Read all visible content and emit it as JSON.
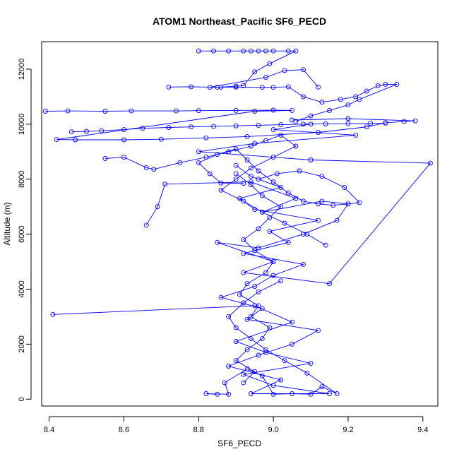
{
  "chart_data": {
    "type": "scatter",
    "title": "ATOM1 Northeast_Pacific SF6_PECD",
    "xlabel": "SF6_PECD",
    "ylabel": "Altitude (m)",
    "xlim": [
      8.38,
      9.44
    ],
    "ylim": [
      -250,
      13000
    ],
    "x_ticks": [
      8.4,
      8.6,
      8.8,
      9.0,
      9.2,
      9.4
    ],
    "x_tick_labels": [
      "8.4",
      "8.6",
      "8.8",
      "9.0",
      "9.2",
      "9.4"
    ],
    "y_ticks": [
      0,
      2000,
      4000,
      6000,
      8000,
      10000,
      12000
    ],
    "y_tick_labels": [
      "0",
      "2000",
      "4000",
      "6000",
      "8000",
      "10000",
      "12000"
    ],
    "grid": false,
    "color": "#0000ff",
    "marker": "open-circle",
    "series": [
      {
        "x": [
          8.41,
          8.95,
          9.05,
          8.9,
          8.98,
          9.1,
          8.92,
          9.0,
          9.15,
          8.94,
          9.02,
          8.88,
          8.96,
          9.05,
          9.12,
          8.93,
          8.97,
          8.86,
          8.95,
          9.0,
          9.08,
          8.92,
          9.04,
          8.99,
          9.12,
          8.95,
          8.91,
          9.02,
          8.94,
          8.9
        ],
        "y": [
          3080,
          3400,
          2800,
          2100,
          1700,
          1300,
          900,
          500,
          200,
          200,
          700,
          1200,
          1600,
          2000,
          2500,
          2900,
          3300,
          3700,
          4100,
          4500,
          4900,
          5300,
          5700,
          6100,
          6500,
          6900,
          7300,
          7700,
          8100,
          8500
        ]
      },
      {
        "x": [
          8.66,
          8.69,
          8.71,
          8.94,
          9.06,
          8.97,
          9.13,
          9.2,
          9.17,
          9.08,
          8.96,
          8.85,
          9.0,
          8.92,
          9.15,
          9.42,
          9.1,
          8.8,
          8.95,
          9.22,
          9.0,
          9.1
        ],
        "y": [
          6330,
          7000,
          7820,
          7900,
          7300,
          6800,
          7200,
          7100,
          6500,
          6000,
          5500,
          5700,
          5000,
          4600,
          4200,
          8580,
          8700,
          9000,
          9300,
          9600,
          9800,
          10000
        ]
      },
      {
        "x": [
          8.39,
          8.45,
          8.55,
          8.62,
          8.74,
          8.8,
          8.9,
          9.0,
          9.05,
          8.95,
          8.42,
          8.47,
          8.6,
          8.7,
          8.82,
          8.93,
          9.12,
          9.25,
          9.3,
          9.35,
          9.38,
          9.2,
          9.05
        ],
        "y": [
          10470,
          10480,
          10470,
          10480,
          10480,
          10490,
          10500,
          10510,
          10500,
          10470,
          9440,
          9430,
          9430,
          9450,
          9500,
          9550,
          9700,
          9900,
          10050,
          10100,
          10120,
          10200,
          10150
        ]
      },
      {
        "x": [
          8.8,
          8.84,
          8.88,
          8.92,
          8.94,
          8.96,
          8.98,
          9.0,
          9.04,
          9.06,
          8.99,
          8.95,
          8.92,
          8.9,
          8.86,
          8.83,
          8.98,
          9.03,
          9.08,
          9.12
        ],
        "y": [
          12660,
          12660,
          12660,
          12660,
          12660,
          12660,
          12660,
          12660,
          12660,
          12660,
          12200,
          11900,
          11400,
          11380,
          11350,
          11340,
          11700,
          11950,
          11980,
          11350
        ]
      },
      {
        "x": [
          8.85,
          8.82,
          8.88,
          8.87,
          8.93,
          8.97,
          9.0,
          9.05,
          9.1,
          9.13,
          9.17,
          9.09,
          9.03,
          8.98,
          8.94,
          8.9,
          8.88,
          8.92,
          8.96,
          9.02
        ],
        "y": [
          180,
          200,
          180,
          600,
          1100,
          850,
          180,
          200,
          180,
          450,
          200,
          950,
          1400,
          1800,
          2200,
          2600,
          3000,
          3500,
          3900,
          4300
        ]
      },
      {
        "x": [
          8.72,
          8.78,
          8.85,
          8.9,
          8.97,
          9.0,
          9.04,
          9.08,
          9.13,
          9.18,
          9.22,
          9.25,
          9.28,
          9.3,
          9.33,
          9.23,
          9.2,
          9.15,
          9.1,
          9.06
        ],
        "y": [
          11350,
          11360,
          11340,
          11350,
          11340,
          11340,
          11360,
          11000,
          10800,
          10900,
          11000,
          11200,
          11400,
          11450,
          11450,
          10900,
          10700,
          10500,
          10300,
          10100
        ]
      },
      {
        "x": [
          8.92,
          8.86,
          8.83,
          8.8,
          8.85,
          8.9,
          8.93,
          8.96,
          9.0,
          9.04,
          9.08,
          9.12,
          9.16,
          9.2,
          9.23,
          9.19,
          9.13,
          9.07,
          9.01,
          8.96
        ],
        "y": [
          7850,
          7860,
          8200,
          8600,
          8900,
          9100,
          8700,
          8300,
          7900,
          7500,
          7200,
          7100,
          7050,
          7100,
          7150,
          7700,
          8100,
          8300,
          8200,
          8000
        ]
      },
      {
        "x": [
          8.46,
          8.5,
          8.54,
          8.6,
          8.65,
          8.72,
          8.78,
          8.84,
          8.9,
          8.96,
          9.02,
          9.08,
          9.14,
          9.2,
          9.26,
          9.3
        ],
        "y": [
          9720,
          9740,
          9760,
          9800,
          9850,
          9880,
          9900,
          9920,
          9940,
          9960,
          9980,
          10000,
          10010,
          10020,
          10030,
          10040
        ]
      },
      {
        "x": [
          8.55,
          8.6,
          8.66,
          8.68,
          8.75,
          8.82,
          8.88,
          8.94,
          8.98,
          9.02,
          9.06,
          9.0,
          8.94,
          8.9,
          8.86,
          8.92,
          8.97,
          9.03,
          9.09,
          9.14
        ],
        "y": [
          8750,
          8800,
          8420,
          8360,
          8600,
          8800,
          9000,
          9200,
          9400,
          9600,
          9200,
          8800,
          8400,
          8000,
          7600,
          7200,
          6800,
          6400,
          6000,
          5600
        ]
      },
      {
        "x": [
          8.92,
          8.95,
          8.9,
          8.93,
          8.97,
          8.99,
          8.94,
          8.96,
          8.91,
          8.93,
          8.98,
          9.0,
          8.95,
          8.92,
          8.96,
          8.99,
          9.02,
          8.97,
          8.94,
          8.9
        ],
        "y": [
          600,
          1000,
          1400,
          1800,
          2200,
          2600,
          3000,
          3400,
          3800,
          4200,
          4600,
          5000,
          5400,
          5800,
          6200,
          6600,
          7000,
          7400,
          7800,
          8200
        ]
      }
    ]
  }
}
